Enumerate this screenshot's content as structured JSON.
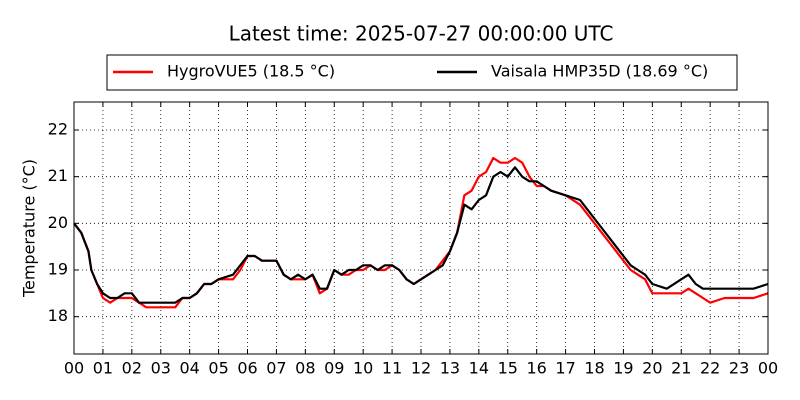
{
  "chart_data": {
    "type": "line",
    "title": "Latest time: 2025-07-27 00:00:00 UTC",
    "y_label": "Temperature (°C)",
    "legend": "upper center",
    "grid": true,
    "x": [
      0,
      0.25,
      0.5,
      0.6,
      0.8,
      1,
      1.25,
      1.5,
      1.75,
      2,
      2.25,
      2.5,
      3,
      3.5,
      3.75,
      4,
      4.25,
      4.5,
      4.75,
      5,
      5.5,
      5.75,
      6,
      6.25,
      6.5,
      7,
      7.25,
      7.5,
      7.75,
      8,
      8.25,
      8.5,
      8.75,
      9,
      9.25,
      9.5,
      9.75,
      10,
      10.25,
      10.5,
      10.75,
      11,
      11.25,
      11.5,
      11.75,
      12,
      12.25,
      12.5,
      12.75,
      13,
      13.25,
      13.5,
      13.75,
      14,
      14.25,
      14.5,
      14.75,
      15,
      15.25,
      15.5,
      15.75,
      16,
      16.25,
      16.5,
      17,
      17.5,
      18,
      18.25,
      18.5,
      18.75,
      19,
      19.25,
      19.5,
      19.75,
      20,
      20.5,
      21,
      21.25,
      21.5,
      21.75,
      22,
      22.5,
      23,
      23.5,
      24
    ],
    "series": [
      {
        "name": "HygroVUE5 (18.5 °C)",
        "color": "#ff0000",
        "values": [
          20.0,
          19.8,
          19.4,
          19.0,
          18.7,
          18.4,
          18.3,
          18.4,
          18.4,
          18.4,
          18.3,
          18.2,
          18.2,
          18.2,
          18.4,
          18.4,
          18.5,
          18.7,
          18.7,
          18.8,
          18.8,
          19.0,
          19.3,
          19.3,
          19.2,
          19.2,
          18.9,
          18.8,
          18.8,
          18.8,
          18.9,
          18.5,
          18.6,
          19.0,
          18.9,
          18.9,
          19.0,
          19.0,
          19.1,
          19.0,
          19.0,
          19.1,
          19.0,
          18.8,
          18.7,
          18.8,
          18.9,
          19.0,
          19.2,
          19.4,
          19.8,
          20.6,
          20.7,
          21.0,
          21.1,
          21.4,
          21.3,
          21.3,
          21.4,
          21.3,
          21.0,
          20.8,
          20.8,
          20.7,
          20.6,
          20.4,
          20.0,
          19.8,
          19.6,
          19.4,
          19.2,
          19.0,
          18.9,
          18.8,
          18.5,
          18.5,
          18.5,
          18.6,
          18.5,
          18.4,
          18.3,
          18.4,
          18.4,
          18.4,
          18.5
        ]
      },
      {
        "name": "Vaisala HMP35D (18.69 °C)",
        "color": "#000000",
        "values": [
          20.0,
          19.8,
          19.4,
          19.0,
          18.7,
          18.5,
          18.4,
          18.4,
          18.5,
          18.5,
          18.3,
          18.3,
          18.3,
          18.3,
          18.4,
          18.4,
          18.5,
          18.7,
          18.7,
          18.8,
          18.9,
          19.1,
          19.3,
          19.3,
          19.2,
          19.2,
          18.9,
          18.8,
          18.9,
          18.8,
          18.9,
          18.6,
          18.6,
          19.0,
          18.9,
          19.0,
          19.0,
          19.1,
          19.1,
          19.0,
          19.1,
          19.1,
          19.0,
          18.8,
          18.7,
          18.8,
          18.9,
          19.0,
          19.1,
          19.4,
          19.8,
          20.4,
          20.3,
          20.5,
          20.6,
          21.0,
          21.1,
          21.0,
          21.2,
          21.0,
          20.9,
          20.9,
          20.8,
          20.7,
          20.6,
          20.5,
          20.1,
          19.9,
          19.7,
          19.5,
          19.3,
          19.1,
          19.0,
          18.9,
          18.7,
          18.6,
          18.8,
          18.9,
          18.7,
          18.6,
          18.6,
          18.6,
          18.6,
          18.6,
          18.7
        ]
      }
    ],
    "xlim": [
      0,
      24
    ],
    "xticks": [
      {
        "value": 0,
        "label": "00"
      },
      {
        "value": 1,
        "label": "01"
      },
      {
        "value": 2,
        "label": "02"
      },
      {
        "value": 3,
        "label": "03"
      },
      {
        "value": 4,
        "label": "04"
      },
      {
        "value": 5,
        "label": "05"
      },
      {
        "value": 6,
        "label": "06"
      },
      {
        "value": 7,
        "label": "07"
      },
      {
        "value": 8,
        "label": "08"
      },
      {
        "value": 9,
        "label": "09"
      },
      {
        "value": 10,
        "label": "10"
      },
      {
        "value": 11,
        "label": "11"
      },
      {
        "value": 12,
        "label": "12"
      },
      {
        "value": 13,
        "label": "13"
      },
      {
        "value": 14,
        "label": "14"
      },
      {
        "value": 15,
        "label": "15"
      },
      {
        "value": 16,
        "label": "16"
      },
      {
        "value": 17,
        "label": "17"
      },
      {
        "value": 18,
        "label": "18"
      },
      {
        "value": 19,
        "label": "19"
      },
      {
        "value": 20,
        "label": "20"
      },
      {
        "value": 21,
        "label": "21"
      },
      {
        "value": 22,
        "label": "22"
      },
      {
        "value": 23,
        "label": "23"
      },
      {
        "value": 24,
        "label": "00"
      }
    ],
    "ylim": [
      17.2,
      22.6
    ],
    "yticks": [
      18,
      19,
      20,
      21,
      22
    ]
  }
}
